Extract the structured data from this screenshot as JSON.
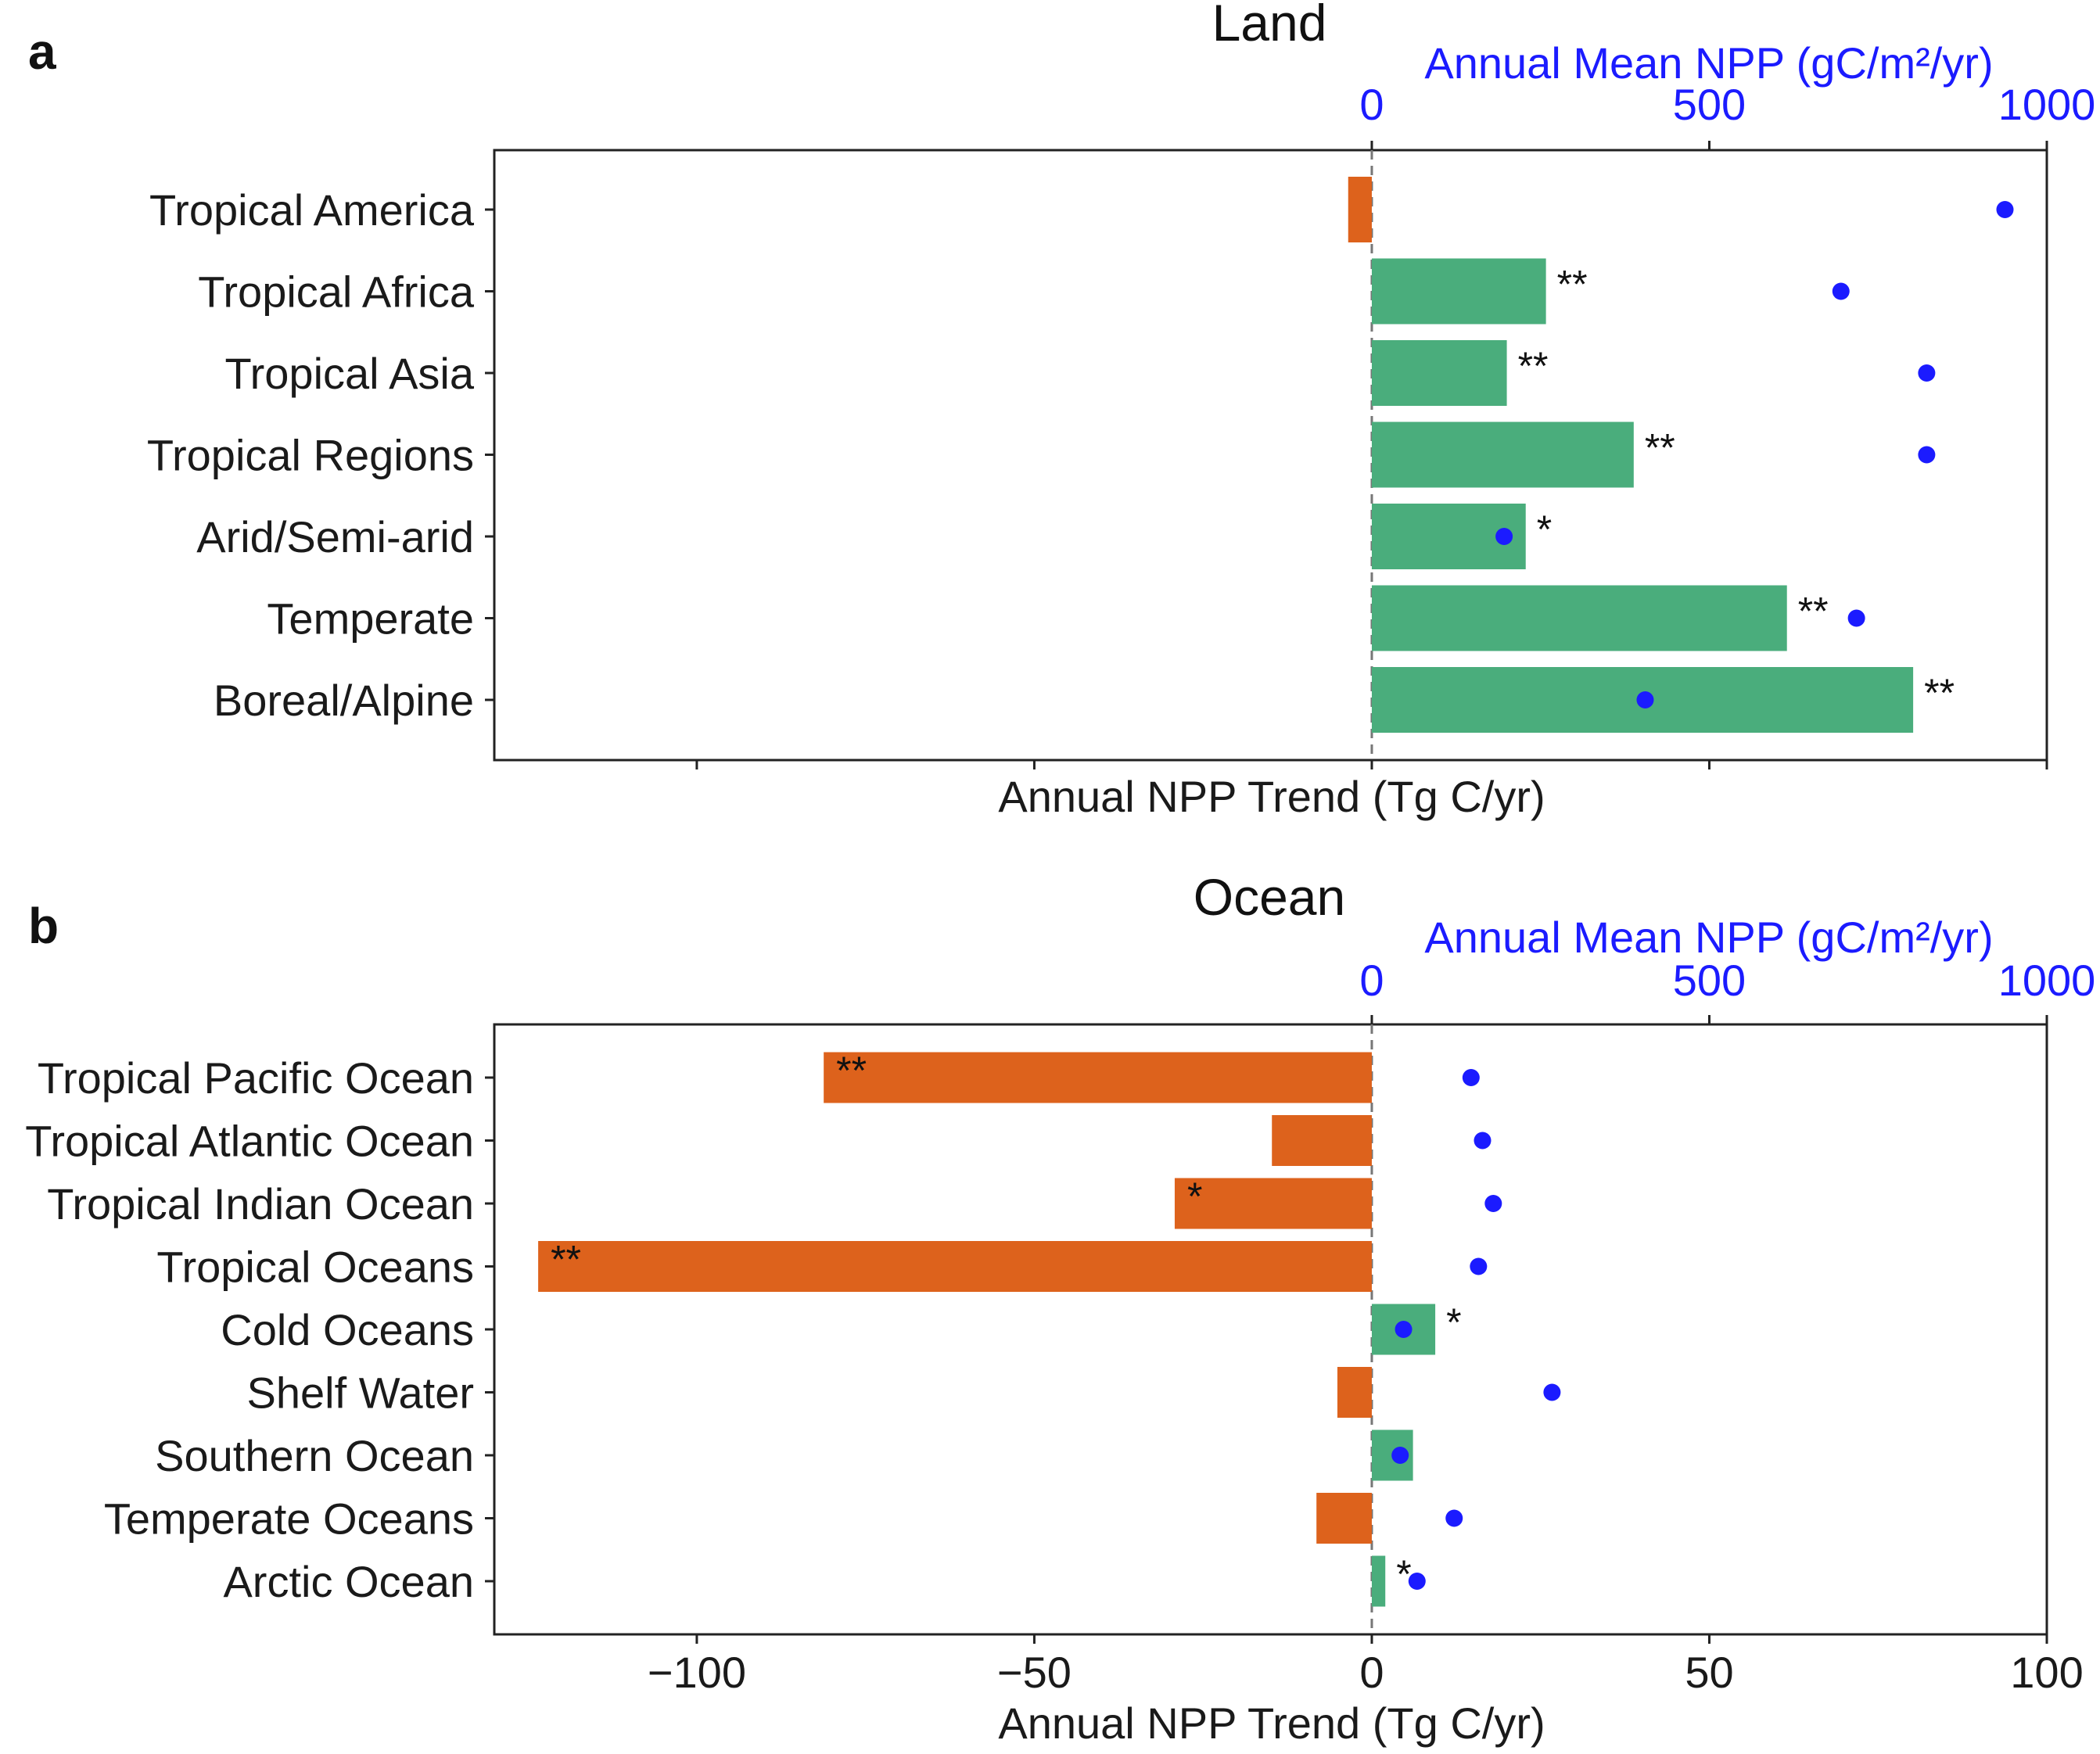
{
  "chart_data": [
    {
      "type": "bar",
      "panel_label": "a",
      "title": "Land",
      "xlabel": "Annual NPP Trend (Tg C/yr)",
      "xlim": [
        -130,
        100
      ],
      "xticks": [],
      "top_axis": {
        "label": "Annual Mean NPP (gC/m²/yr)",
        "lim": [
          -1300,
          1000
        ],
        "ticks": [
          0,
          500,
          1000
        ],
        "tick_labels": [
          "0",
          "500",
          "1000"
        ],
        "color": "#1b1bff"
      },
      "categories": [
        "Tropical America",
        "Tropical Africa",
        "Tropical Asia",
        "Tropical Regions",
        "Arid/Semi-arid",
        "Temperate",
        "Boreal/Alpine"
      ],
      "trend_values": [
        -3.5,
        25.8,
        20,
        38.8,
        22.8,
        61.5,
        80.2
      ],
      "significance": [
        "",
        "**",
        "**",
        "**",
        "*",
        "**",
        "**"
      ],
      "mean_npp": [
        938,
        695,
        822,
        822,
        196,
        718,
        405
      ],
      "colors": {
        "positive": "#4aad7c",
        "negative": "#dd621c",
        "points": "#1b1bff"
      }
    },
    {
      "type": "bar",
      "panel_label": "b",
      "title": "Ocean",
      "xlabel": "Annual NPP Trend (Tg C/yr)",
      "xlim": [
        -130,
        100
      ],
      "xticks": [
        -100,
        -50,
        0,
        50,
        100
      ],
      "xtick_labels": [
        "−100",
        "−50",
        "0",
        "50",
        "100"
      ],
      "top_axis": {
        "label": "Annual Mean NPP (gC/m²/yr)",
        "lim": [
          -1300,
          1000
        ],
        "ticks": [
          0,
          500,
          1000
        ],
        "tick_labels": [
          "0",
          "500",
          "1000"
        ],
        "color": "#1b1bff"
      },
      "categories": [
        "Tropical Pacific Ocean",
        "Tropical Atlantic Ocean",
        "Tropical Indian Ocean",
        "Tropical Oceans",
        "Cold Oceans",
        "Shelf Water",
        "Southern Ocean",
        "Temperate Oceans",
        "Arctic Ocean"
      ],
      "trend_values": [
        -81.2,
        -14.8,
        -29.2,
        -123.5,
        9.4,
        -5.1,
        6.1,
        -8.2,
        2
      ],
      "significance": [
        "**",
        "",
        "*",
        "**",
        "*",
        "",
        "",
        "",
        "*"
      ],
      "mean_npp": [
        147,
        164,
        180,
        158,
        47,
        267,
        42,
        122,
        67
      ],
      "colors": {
        "positive": "#4aad7c",
        "negative": "#dd621c",
        "points": "#1b1bff"
      }
    }
  ]
}
